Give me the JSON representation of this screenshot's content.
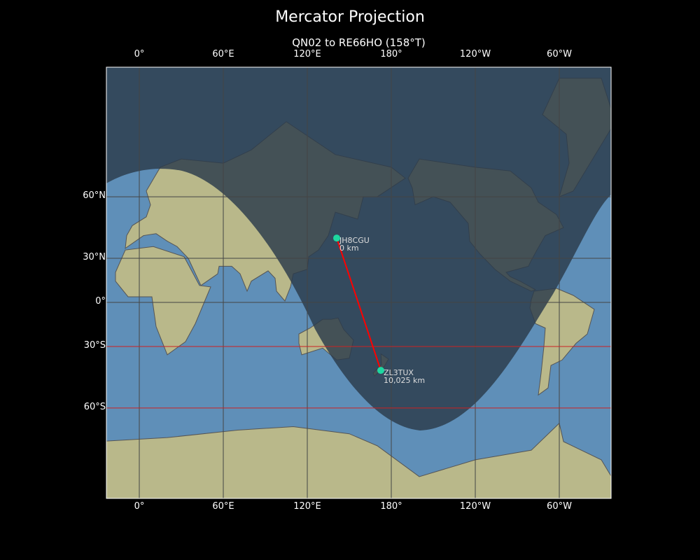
{
  "title": "Mercator Projection",
  "subtitle": "QN02 to RE66HO (158°T)",
  "lon_ticks": [
    {
      "lon": 0,
      "label": "0°"
    },
    {
      "lon": 60,
      "label": "60°E"
    },
    {
      "lon": 120,
      "label": "120°E"
    },
    {
      "lon": 180,
      "label": "180°"
    },
    {
      "lon": 240,
      "label": "120°W"
    },
    {
      "lon": 300,
      "label": "60°W"
    }
  ],
  "lat_ticks": [
    {
      "lat": 60,
      "label": "60°N"
    },
    {
      "lat": 30,
      "label": "30°N"
    },
    {
      "lat": 0,
      "label": "0°"
    },
    {
      "lat": -30,
      "label": "30°S"
    },
    {
      "lat": -60,
      "label": "60°S"
    }
  ],
  "colors": {
    "ocean": "#5f8fb8",
    "land": "#b9b88a",
    "night": "#2b3a4a",
    "path": "#ff0000",
    "marker": "#1ed7a0",
    "grid": "#444444",
    "grid_south": "#cc2222"
  },
  "stations": [
    {
      "call": "JH8CGU",
      "distance": "0 km",
      "lat": 41.7,
      "lon": 141
    },
    {
      "call": "ZL3TUX",
      "distance": "10,025 km",
      "lat": -43.6,
      "lon": 172.5
    }
  ]
}
